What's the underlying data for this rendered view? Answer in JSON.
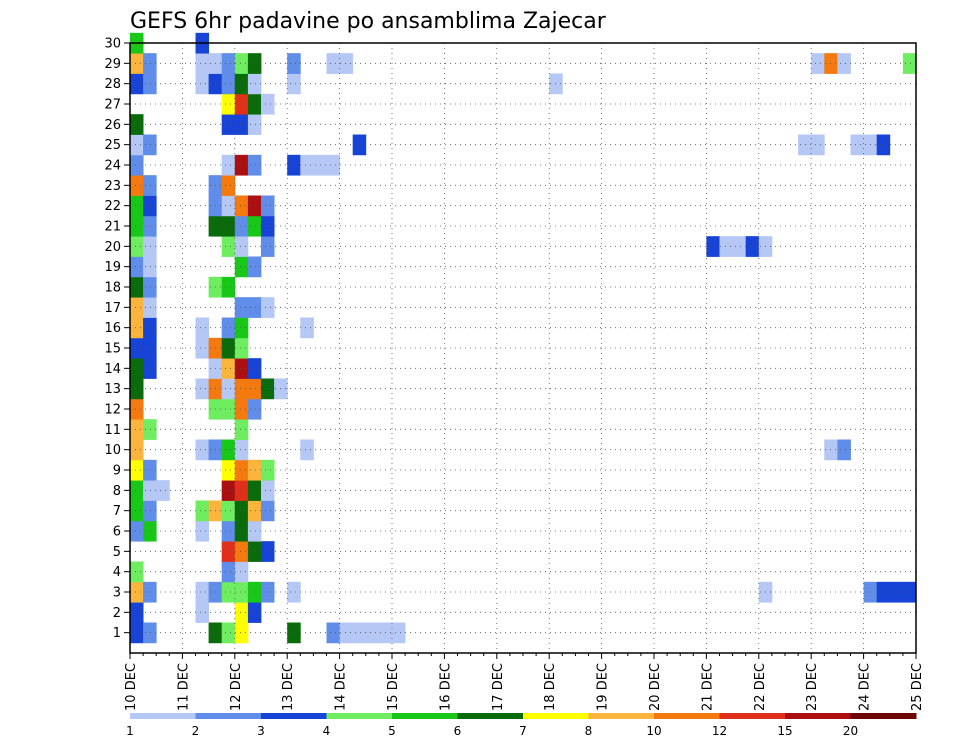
{
  "chart_data": {
    "type": "heatmap",
    "title": "GEFS 6hr padavine po ansamblima Zajecar",
    "xlabel": "",
    "ylabel": "",
    "x_ticks": [
      "10 DEC",
      "11 DEC",
      "12 DEC",
      "13 DEC",
      "14 DEC",
      "15 DEC",
      "16 DEC",
      "17 DEC",
      "18 DEC",
      "19 DEC",
      "20 DEC",
      "21 DEC",
      "22 DEC",
      "23 DEC",
      "24 DEC",
      "25 DEC"
    ],
    "y_ticks": [
      "1",
      "2",
      "3",
      "4",
      "5",
      "6",
      "7",
      "8",
      "9",
      "10",
      "11",
      "12",
      "13",
      "14",
      "15",
      "16",
      "17",
      "18",
      "19",
      "20",
      "21",
      "22",
      "23",
      "24",
      "25",
      "26",
      "27",
      "28",
      "29",
      "30"
    ],
    "xlim": [
      0,
      60
    ],
    "ylim": [
      0,
      30
    ],
    "time_step_hours": 6,
    "grid": true,
    "colorbar": {
      "levels": [
        "1",
        "2",
        "3",
        "4",
        "5",
        "6",
        "7",
        "8",
        "10",
        "12",
        "15",
        "20"
      ],
      "colors": [
        "#b4c7f5",
        "#5f8de9",
        "#1743d6",
        "#6ded5f",
        "#18c718",
        "#0a6b0a",
        "#ffff00",
        "#fbb43c",
        "#f47a10",
        "#e0301a",
        "#ab0f0f",
        "#6e0505"
      ]
    },
    "cells": [
      [
        1,
        0,
        3
      ],
      [
        1,
        1,
        2
      ],
      [
        1,
        6,
        6
      ],
      [
        1,
        7,
        4
      ],
      [
        1,
        8,
        7
      ],
      [
        1,
        12,
        6
      ],
      [
        1,
        15,
        2
      ],
      [
        1,
        16,
        1
      ],
      [
        1,
        17,
        1
      ],
      [
        1,
        18,
        1
      ],
      [
        1,
        19,
        1
      ],
      [
        1,
        20,
        1
      ],
      [
        2,
        0,
        3
      ],
      [
        2,
        5,
        1
      ],
      [
        2,
        8,
        7
      ],
      [
        2,
        9,
        3
      ],
      [
        3,
        0,
        8
      ],
      [
        3,
        1,
        2
      ],
      [
        3,
        5,
        1
      ],
      [
        3,
        6,
        2
      ],
      [
        3,
        7,
        4
      ],
      [
        3,
        8,
        4
      ],
      [
        3,
        9,
        5
      ],
      [
        3,
        10,
        2
      ],
      [
        3,
        12,
        1
      ],
      [
        3,
        48,
        1
      ],
      [
        3,
        56,
        2
      ],
      [
        3,
        57,
        3
      ],
      [
        3,
        58,
        3
      ],
      [
        3,
        59,
        3
      ],
      [
        4,
        0,
        4
      ],
      [
        4,
        7,
        2
      ],
      [
        4,
        8,
        1
      ],
      [
        5,
        7,
        10
      ],
      [
        5,
        8,
        9
      ],
      [
        5,
        9,
        6
      ],
      [
        5,
        10,
        3
      ],
      [
        6,
        0,
        2
      ],
      [
        6,
        1,
        5
      ],
      [
        6,
        5,
        1
      ],
      [
        6,
        7,
        2
      ],
      [
        6,
        8,
        6
      ],
      [
        6,
        9,
        1
      ],
      [
        7,
        0,
        5
      ],
      [
        7,
        1,
        2
      ],
      [
        7,
        5,
        4
      ],
      [
        7,
        6,
        8
      ],
      [
        7,
        7,
        4
      ],
      [
        7,
        8,
        6
      ],
      [
        7,
        9,
        8
      ],
      [
        7,
        10,
        2
      ],
      [
        8,
        0,
        5
      ],
      [
        8,
        1,
        1
      ],
      [
        8,
        2,
        1
      ],
      [
        8,
        7,
        11
      ],
      [
        8,
        8,
        10
      ],
      [
        8,
        9,
        6
      ],
      [
        8,
        10,
        1
      ],
      [
        9,
        0,
        7
      ],
      [
        9,
        1,
        2
      ],
      [
        9,
        7,
        7
      ],
      [
        9,
        8,
        9
      ],
      [
        9,
        9,
        8
      ],
      [
        9,
        10,
        4
      ],
      [
        10,
        0,
        8
      ],
      [
        10,
        5,
        1
      ],
      [
        10,
        6,
        2
      ],
      [
        10,
        7,
        5
      ],
      [
        10,
        8,
        1
      ],
      [
        10,
        13,
        1
      ],
      [
        10,
        53,
        1
      ],
      [
        10,
        54,
        2
      ],
      [
        11,
        0,
        8
      ],
      [
        11,
        1,
        4
      ],
      [
        11,
        8,
        4
      ],
      [
        12,
        0,
        9
      ],
      [
        12,
        6,
        4
      ],
      [
        12,
        7,
        4
      ],
      [
        12,
        8,
        9
      ],
      [
        12,
        9,
        2
      ],
      [
        13,
        0,
        6
      ],
      [
        13,
        5,
        1
      ],
      [
        13,
        6,
        9
      ],
      [
        13,
        7,
        1
      ],
      [
        13,
        8,
        9
      ],
      [
        13,
        9,
        9
      ],
      [
        13,
        10,
        6
      ],
      [
        13,
        11,
        1
      ],
      [
        14,
        0,
        6
      ],
      [
        14,
        1,
        3
      ],
      [
        14,
        6,
        1
      ],
      [
        14,
        7,
        8
      ],
      [
        14,
        8,
        11
      ],
      [
        14,
        9,
        3
      ],
      [
        15,
        0,
        3
      ],
      [
        15,
        1,
        3
      ],
      [
        15,
        5,
        1
      ],
      [
        15,
        6,
        9
      ],
      [
        15,
        7,
        6
      ],
      [
        15,
        8,
        4
      ],
      [
        16,
        0,
        8
      ],
      [
        16,
        1,
        3
      ],
      [
        16,
        5,
        1
      ],
      [
        16,
        7,
        2
      ],
      [
        16,
        8,
        5
      ],
      [
        16,
        13,
        1
      ],
      [
        17,
        0,
        8
      ],
      [
        17,
        1,
        1
      ],
      [
        17,
        8,
        2
      ],
      [
        17,
        9,
        2
      ],
      [
        17,
        10,
        1
      ],
      [
        18,
        0,
        6
      ],
      [
        18,
        1,
        2
      ],
      [
        18,
        6,
        4
      ],
      [
        18,
        7,
        5
      ],
      [
        19,
        0,
        2
      ],
      [
        19,
        1,
        1
      ],
      [
        19,
        8,
        5
      ],
      [
        19,
        9,
        2
      ],
      [
        20,
        0,
        4
      ],
      [
        20,
        1,
        1
      ],
      [
        20,
        7,
        4
      ],
      [
        20,
        8,
        1
      ],
      [
        20,
        10,
        2
      ],
      [
        20,
        44,
        3
      ],
      [
        20,
        45,
        1
      ],
      [
        20,
        46,
        1
      ],
      [
        20,
        47,
        3
      ],
      [
        20,
        48,
        1
      ],
      [
        21,
        0,
        5
      ],
      [
        21,
        1,
        2
      ],
      [
        21,
        6,
        6
      ],
      [
        21,
        7,
        6
      ],
      [
        21,
        8,
        2
      ],
      [
        21,
        9,
        5
      ],
      [
        21,
        10,
        3
      ],
      [
        22,
        0,
        5
      ],
      [
        22,
        1,
        3
      ],
      [
        22,
        6,
        2
      ],
      [
        22,
        7,
        1
      ],
      [
        22,
        8,
        9
      ],
      [
        22,
        9,
        11
      ],
      [
        22,
        10,
        2
      ],
      [
        23,
        0,
        9
      ],
      [
        23,
        1,
        2
      ],
      [
        23,
        6,
        2
      ],
      [
        23,
        7,
        9
      ],
      [
        24,
        0,
        2
      ],
      [
        24,
        7,
        1
      ],
      [
        24,
        8,
        11
      ],
      [
        24,
        9,
        2
      ],
      [
        24,
        12,
        3
      ],
      [
        24,
        13,
        1
      ],
      [
        24,
        14,
        1
      ],
      [
        24,
        15,
        1
      ],
      [
        25,
        0,
        1
      ],
      [
        25,
        1,
        2
      ],
      [
        25,
        17,
        3
      ],
      [
        25,
        51,
        1
      ],
      [
        25,
        52,
        1
      ],
      [
        25,
        55,
        1
      ],
      [
        25,
        56,
        1
      ],
      [
        25,
        57,
        3
      ],
      [
        26,
        0,
        6
      ],
      [
        26,
        7,
        3
      ],
      [
        26,
        8,
        3
      ],
      [
        26,
        9,
        1
      ],
      [
        27,
        7,
        7
      ],
      [
        27,
        8,
        10
      ],
      [
        27,
        9,
        6
      ],
      [
        27,
        10,
        1
      ],
      [
        28,
        0,
        3
      ],
      [
        28,
        1,
        2
      ],
      [
        28,
        5,
        1
      ],
      [
        28,
        6,
        3
      ],
      [
        28,
        7,
        2
      ],
      [
        28,
        8,
        6
      ],
      [
        28,
        9,
        1
      ],
      [
        28,
        12,
        1
      ],
      [
        28,
        32,
        1
      ],
      [
        29,
        0,
        8
      ],
      [
        29,
        1,
        2
      ],
      [
        29,
        5,
        1
      ],
      [
        29,
        6,
        1
      ],
      [
        29,
        7,
        2
      ],
      [
        29,
        8,
        4
      ],
      [
        29,
        9,
        6
      ],
      [
        29,
        12,
        2
      ],
      [
        29,
        15,
        1
      ],
      [
        29,
        16,
        1
      ],
      [
        29,
        52,
        1
      ],
      [
        29,
        53,
        9
      ],
      [
        29,
        54,
        1
      ],
      [
        29,
        59,
        4
      ],
      [
        30,
        0,
        5
      ],
      [
        30,
        5,
        3
      ]
    ]
  }
}
